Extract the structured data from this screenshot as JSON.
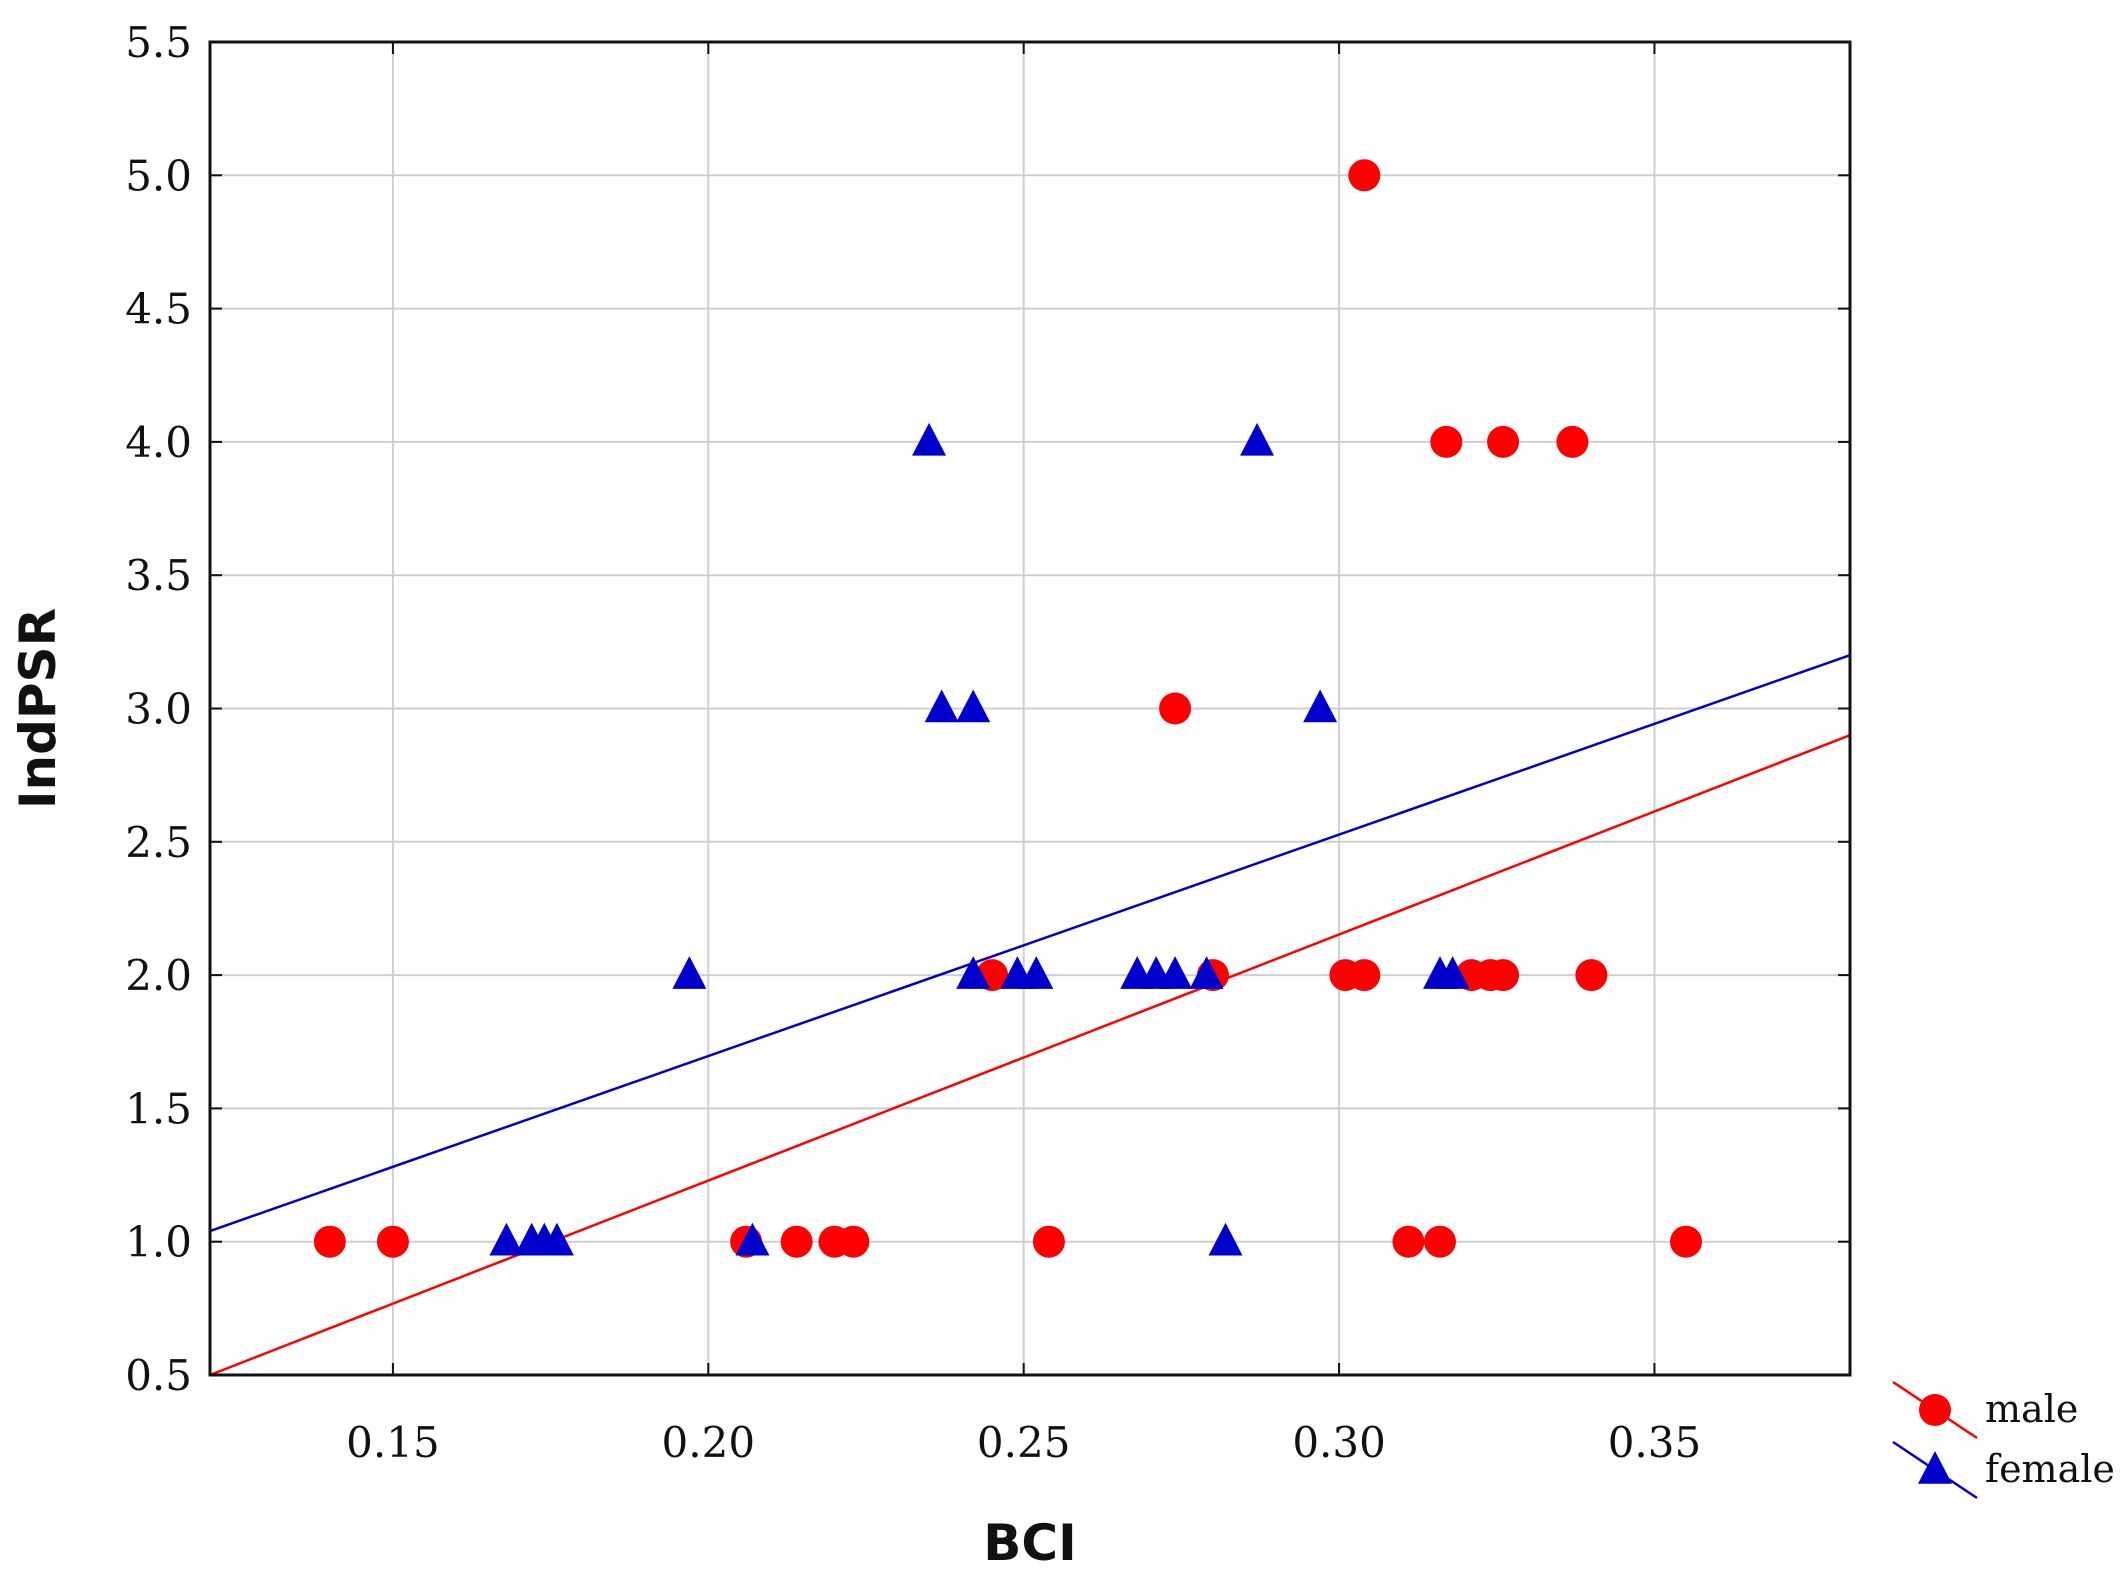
{
  "chart_data": {
    "type": "scatter",
    "title": "",
    "xlabel": "BCI",
    "ylabel": "IndPSR",
    "xlim": [
      0.121,
      0.381
    ],
    "ylim": [
      0.5,
      5.5
    ],
    "xticks": [
      "0.15",
      "0.20",
      "0.25",
      "0.30",
      "0.35"
    ],
    "xtick_values": [
      0.15,
      0.2,
      0.25,
      0.3,
      0.35
    ],
    "yticks": [
      "0.5",
      "1.0",
      "1.5",
      "2.0",
      "2.5",
      "3.0",
      "3.5",
      "4.0",
      "4.5",
      "5.0",
      "5.5"
    ],
    "ytick_values": [
      0.5,
      1.0,
      1.5,
      2.0,
      2.5,
      3.0,
      3.5,
      4.0,
      4.5,
      5.0,
      5.5
    ],
    "grid": true,
    "legend_position": "bottom-right outside",
    "series": [
      {
        "name": "male",
        "marker": "circle",
        "color": "#ff0000",
        "points": [
          [
            0.14,
            1.0
          ],
          [
            0.15,
            1.0
          ],
          [
            0.206,
            1.0
          ],
          [
            0.214,
            1.0
          ],
          [
            0.22,
            1.0
          ],
          [
            0.223,
            1.0
          ],
          [
            0.254,
            1.0
          ],
          [
            0.311,
            1.0
          ],
          [
            0.316,
            1.0
          ],
          [
            0.355,
            1.0
          ],
          [
            0.245,
            2.0
          ],
          [
            0.28,
            2.0
          ],
          [
            0.301,
            2.0
          ],
          [
            0.304,
            2.0
          ],
          [
            0.321,
            2.0
          ],
          [
            0.324,
            2.0
          ],
          [
            0.326,
            2.0
          ],
          [
            0.34,
            2.0
          ],
          [
            0.274,
            3.0
          ],
          [
            0.317,
            4.0
          ],
          [
            0.326,
            4.0
          ],
          [
            0.337,
            4.0
          ],
          [
            0.304,
            5.0
          ]
        ],
        "fit": {
          "x": [
            0.121,
            0.381
          ],
          "y": [
            0.5,
            2.9
          ],
          "color": "#ff0000"
        }
      },
      {
        "name": "female",
        "marker": "triangle",
        "color": "#0000cc",
        "points": [
          [
            0.168,
            1.0
          ],
          [
            0.172,
            1.0
          ],
          [
            0.174,
            1.0
          ],
          [
            0.176,
            1.0
          ],
          [
            0.207,
            1.0
          ],
          [
            0.282,
            1.0
          ],
          [
            0.197,
            2.0
          ],
          [
            0.242,
            2.0
          ],
          [
            0.249,
            2.0
          ],
          [
            0.252,
            2.0
          ],
          [
            0.268,
            2.0
          ],
          [
            0.271,
            2.0
          ],
          [
            0.274,
            2.0
          ],
          [
            0.279,
            2.0
          ],
          [
            0.316,
            2.0
          ],
          [
            0.318,
            2.0
          ],
          [
            0.237,
            3.0
          ],
          [
            0.242,
            3.0
          ],
          [
            0.297,
            3.0
          ],
          [
            0.235,
            4.0
          ],
          [
            0.287,
            4.0
          ]
        ],
        "fit": {
          "x": [
            0.121,
            0.381
          ],
          "y": [
            1.04,
            3.2
          ],
          "color": "#0000cc"
        }
      }
    ]
  }
}
